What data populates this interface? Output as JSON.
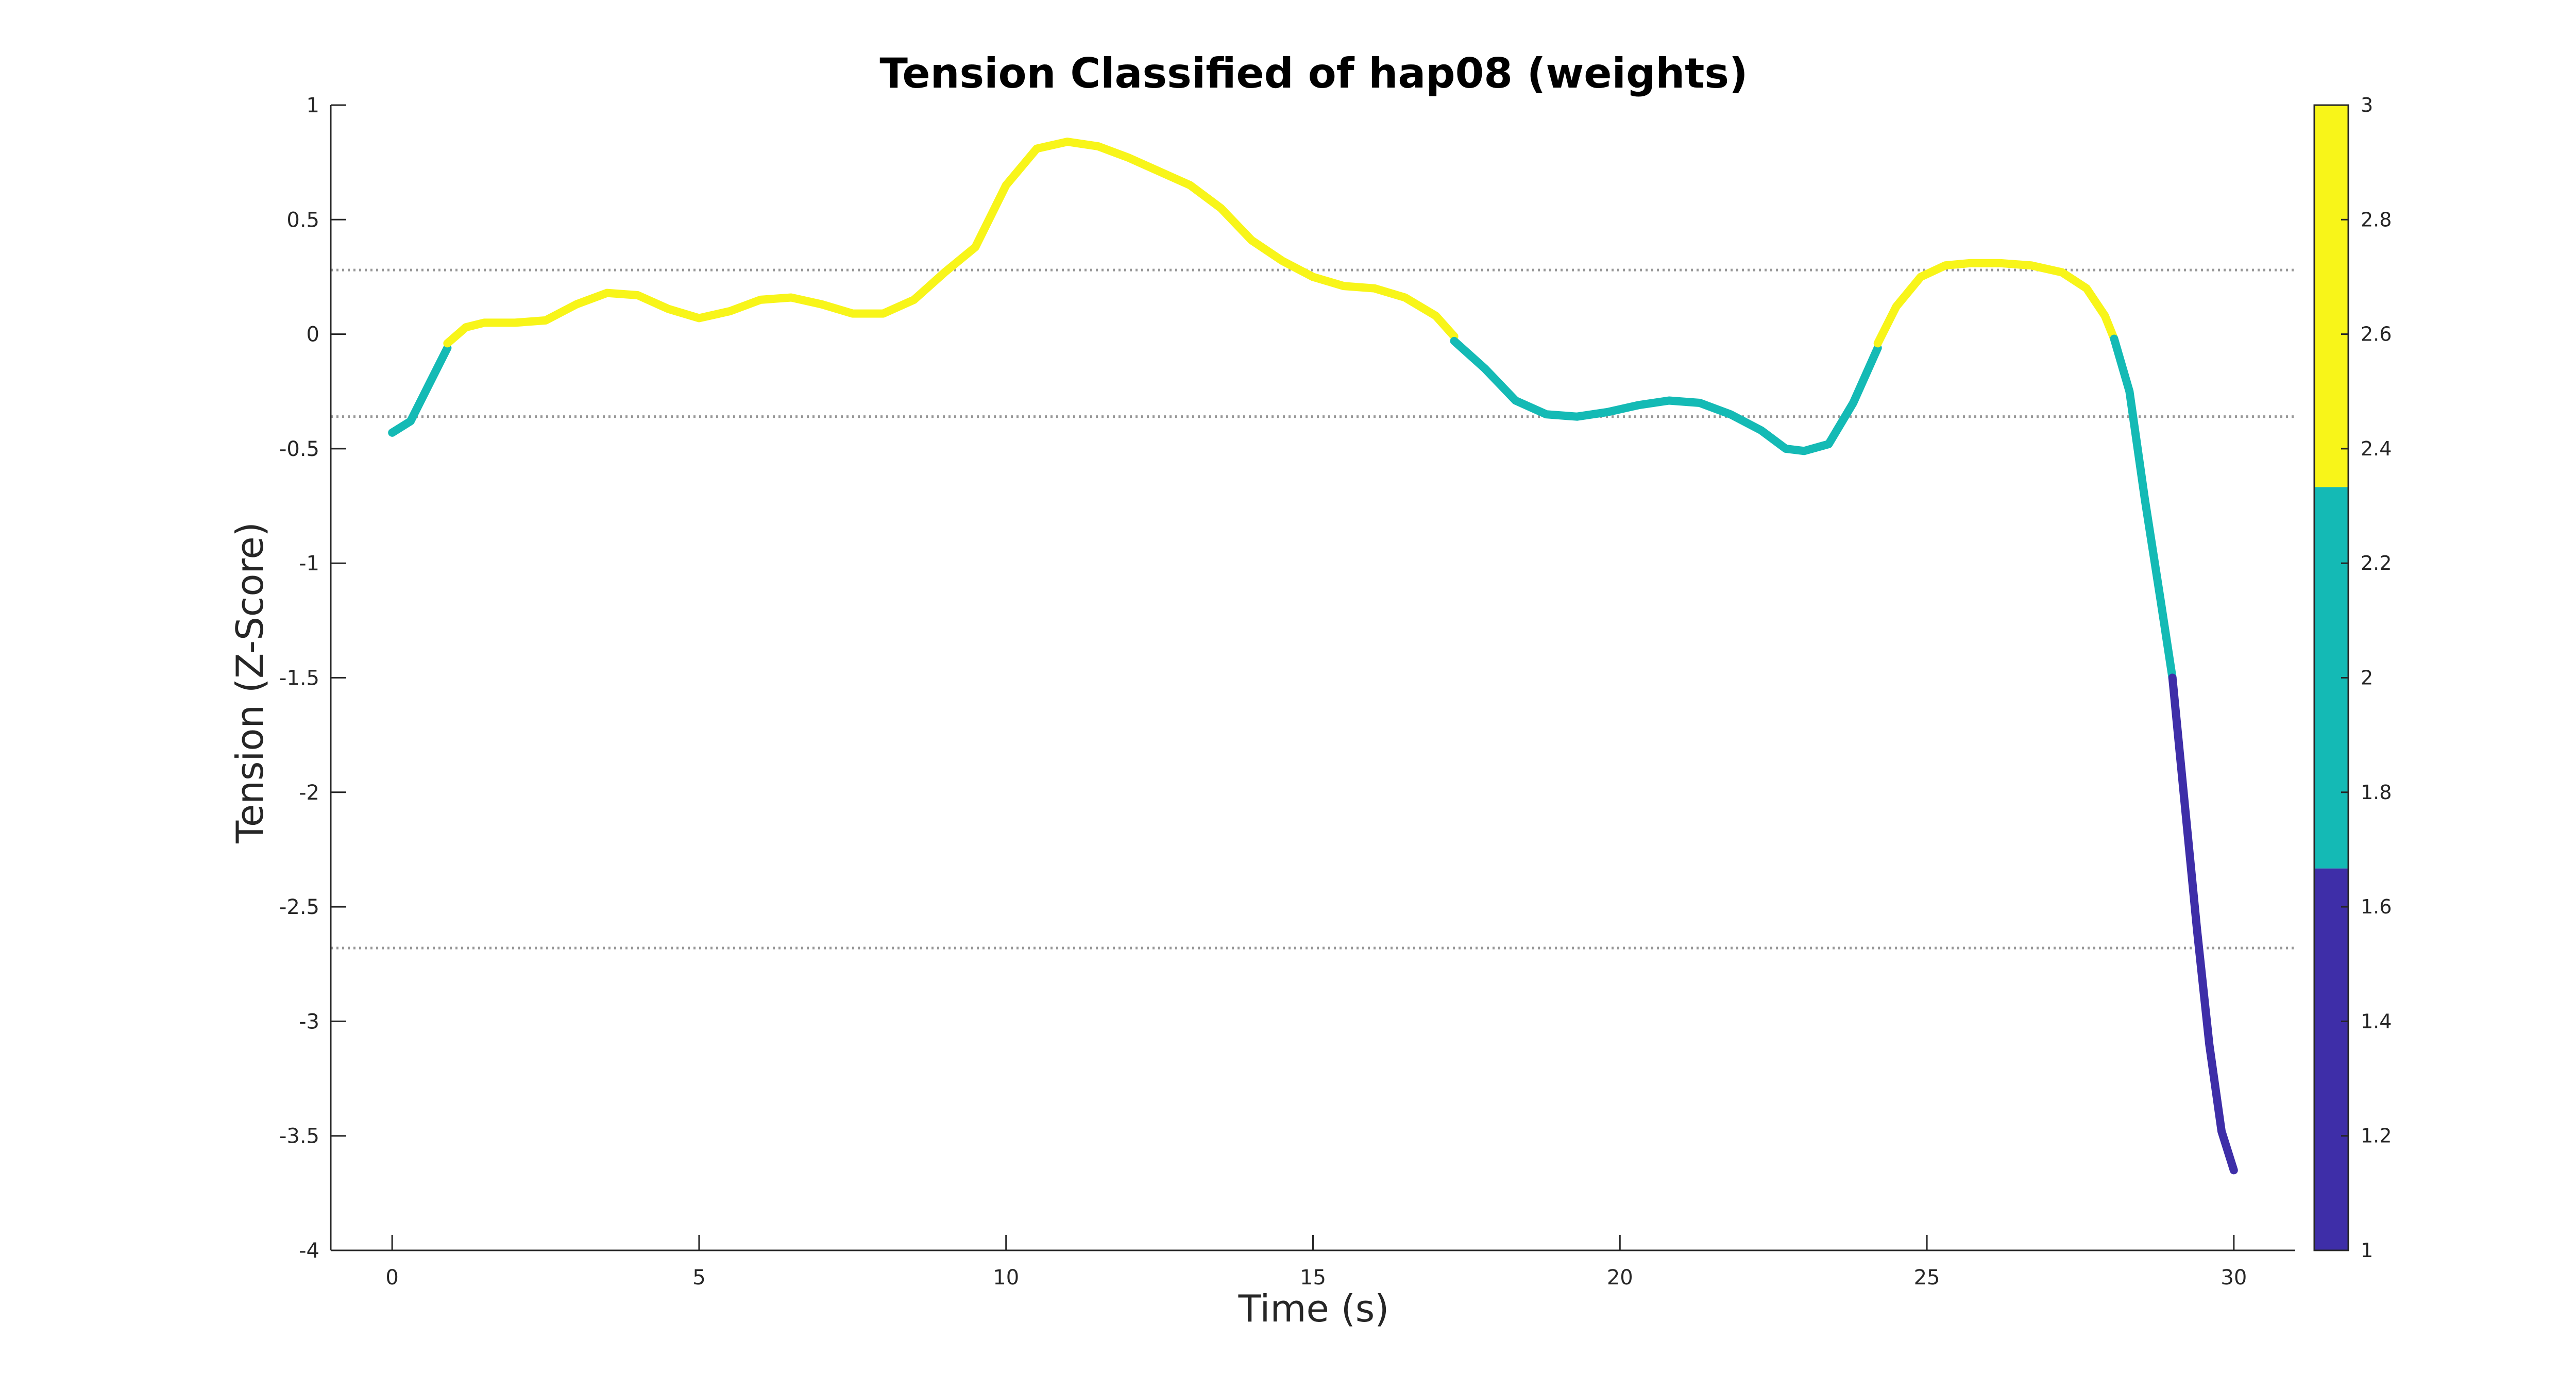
{
  "chart_data": {
    "type": "line",
    "title": "Tension Classified of hap08 (weights)",
    "xlabel": "Time (s)",
    "ylabel": "Tension (Z-Score)",
    "xlim": [
      -1,
      31
    ],
    "ylim": [
      -4,
      1
    ],
    "xticks": [
      0,
      5,
      10,
      15,
      20,
      25,
      30
    ],
    "xtick_labels": [
      "0",
      "5",
      "10",
      "15",
      "20",
      "25",
      "30"
    ],
    "yticks": [
      1,
      0.5,
      0,
      -0.5,
      -1,
      -1.5,
      -2,
      -2.5,
      -3,
      -3.5,
      -4
    ],
    "ytick_labels": [
      "1",
      "0.5",
      "0",
      "-0.5",
      "-1",
      "-1.5",
      "-2",
      "-2.5",
      "-3",
      "-3.5",
      "-4"
    ],
    "grid": false,
    "thresholds": [
      0.28,
      -0.36,
      -2.68
    ],
    "colorbar": {
      "range": [
        1,
        3
      ],
      "ticks": [
        3,
        2.8,
        2.6,
        2.4,
        2.2,
        2,
        1.8,
        1.6,
        1.4,
        1.2,
        1
      ],
      "tick_labels": [
        "3",
        "2.8",
        "2.6",
        "2.4",
        "2.2",
        "2",
        "1.8",
        "1.6",
        "1.4",
        "1.2",
        "1"
      ],
      "bands": [
        {
          "class": 1,
          "from": 1,
          "to": 1.667,
          "color": "#3e2ea8"
        },
        {
          "class": 2,
          "from": 1.667,
          "to": 2.333,
          "color": "#14bab5"
        },
        {
          "class": 3,
          "from": 2.333,
          "to": 3,
          "color": "#f8f519"
        }
      ]
    },
    "series": [
      {
        "class": 2,
        "color": "#14bab5",
        "points": [
          [
            0,
            -0.43
          ],
          [
            0.3,
            -0.38
          ],
          [
            0.6,
            -0.22
          ],
          [
            0.9,
            -0.06
          ]
        ]
      },
      {
        "class": 3,
        "color": "#f8f519",
        "points": [
          [
            0.9,
            -0.04
          ],
          [
            1.2,
            0.03
          ],
          [
            1.5,
            0.05
          ],
          [
            2.0,
            0.05
          ],
          [
            2.5,
            0.06
          ],
          [
            3.0,
            0.13
          ],
          [
            3.5,
            0.18
          ],
          [
            4.0,
            0.17
          ],
          [
            4.5,
            0.11
          ],
          [
            5.0,
            0.07
          ],
          [
            5.5,
            0.1
          ],
          [
            6.0,
            0.15
          ],
          [
            6.5,
            0.16
          ],
          [
            7.0,
            0.13
          ],
          [
            7.5,
            0.09
          ],
          [
            8.0,
            0.09
          ],
          [
            8.5,
            0.15
          ],
          [
            9.0,
            0.27
          ],
          [
            9.5,
            0.38
          ],
          [
            10.0,
            0.65
          ],
          [
            10.5,
            0.81
          ],
          [
            11.0,
            0.84
          ],
          [
            11.5,
            0.82
          ],
          [
            12.0,
            0.77
          ],
          [
            12.5,
            0.71
          ],
          [
            13.0,
            0.65
          ],
          [
            13.5,
            0.55
          ],
          [
            14.0,
            0.41
          ],
          [
            14.5,
            0.32
          ],
          [
            15.0,
            0.25
          ],
          [
            15.5,
            0.21
          ],
          [
            16.0,
            0.2
          ],
          [
            16.5,
            0.16
          ],
          [
            17.0,
            0.08
          ],
          [
            17.3,
            -0.01
          ]
        ]
      },
      {
        "class": 2,
        "color": "#14bab5",
        "points": [
          [
            17.3,
            -0.03
          ],
          [
            17.8,
            -0.15
          ],
          [
            18.3,
            -0.29
          ],
          [
            18.8,
            -0.35
          ],
          [
            19.3,
            -0.36
          ],
          [
            19.8,
            -0.34
          ],
          [
            20.3,
            -0.31
          ],
          [
            20.8,
            -0.29
          ],
          [
            21.3,
            -0.3
          ],
          [
            21.8,
            -0.35
          ],
          [
            22.3,
            -0.42
          ],
          [
            22.7,
            -0.5
          ],
          [
            23.0,
            -0.51
          ],
          [
            23.4,
            -0.48
          ],
          [
            23.8,
            -0.3
          ],
          [
            24.2,
            -0.06
          ]
        ]
      },
      {
        "class": 3,
        "color": "#f8f519",
        "points": [
          [
            24.2,
            -0.04
          ],
          [
            24.5,
            0.12
          ],
          [
            24.9,
            0.25
          ],
          [
            25.3,
            0.3
          ],
          [
            25.7,
            0.31
          ],
          [
            26.2,
            0.31
          ],
          [
            26.7,
            0.3
          ],
          [
            27.2,
            0.27
          ],
          [
            27.6,
            0.2
          ],
          [
            27.9,
            0.08
          ],
          [
            28.05,
            -0.02
          ]
        ]
      },
      {
        "class": 2,
        "color": "#14bab5",
        "points": [
          [
            28.05,
            -0.02
          ],
          [
            28.3,
            -0.25
          ],
          [
            28.55,
            -0.72
          ],
          [
            28.8,
            -1.15
          ],
          [
            29.0,
            -1.5
          ]
        ]
      },
      {
        "class": 1,
        "color": "#3e2ea8",
        "points": [
          [
            29.0,
            -1.5
          ],
          [
            29.2,
            -2.05
          ],
          [
            29.4,
            -2.6
          ],
          [
            29.6,
            -3.1
          ],
          [
            29.8,
            -3.48
          ],
          [
            30.0,
            -3.65
          ]
        ]
      }
    ]
  }
}
